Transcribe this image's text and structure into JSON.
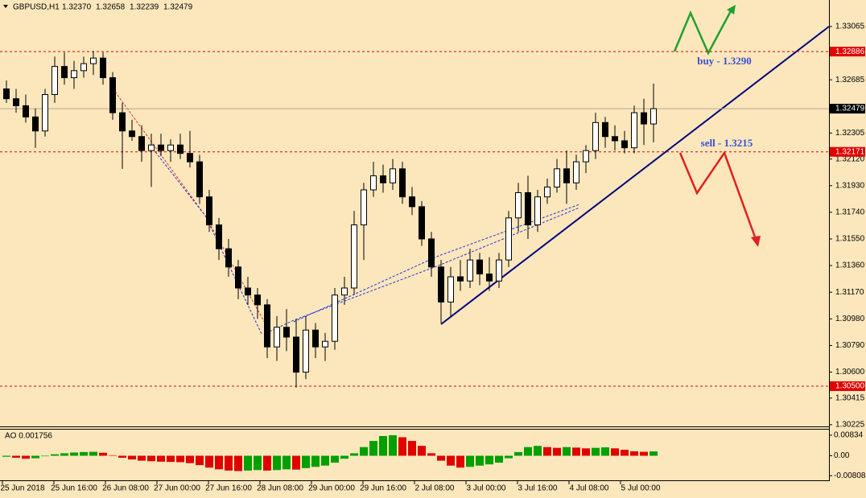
{
  "chart_data": {
    "type": "candlestick",
    "title": "GBPUSD,H1",
    "header_values": [
      "1.32370",
      "1.32658",
      "1.32239",
      "1.32479"
    ],
    "time_labels": [
      "25 Jun 2018",
      "25 Jun 16:00",
      "26 Jun 08:00",
      "27 Jun 00:00",
      "27 Jun 16:00",
      "28 Jun 08:00",
      "29 Jun 00:00",
      "29 Jun 16:00",
      "2 Jul 08:00",
      "3 Jul 00:00",
      "3 Jul 16:00",
      "4 Jul 08:00",
      "5 Jul 00:00"
    ],
    "candles": [
      [
        1.3262,
        1.3268,
        1.3252,
        1.3255
      ],
      [
        1.3255,
        1.3262,
        1.3245,
        1.325
      ],
      [
        1.325,
        1.3258,
        1.3238,
        1.3242
      ],
      [
        1.3242,
        1.3248,
        1.322,
        1.3232
      ],
      [
        1.3232,
        1.3262,
        1.3228,
        1.3258
      ],
      [
        1.3258,
        1.3285,
        1.3252,
        1.3278
      ],
      [
        1.3278,
        1.3288,
        1.3265,
        1.327
      ],
      [
        1.327,
        1.3282,
        1.3262,
        1.3275
      ],
      [
        1.3275,
        1.3285,
        1.327,
        1.328
      ],
      [
        1.328,
        1.3289,
        1.3272,
        1.3284
      ],
      [
        1.3284,
        1.3288,
        1.3265,
        1.327
      ],
      [
        1.327,
        1.3274,
        1.324,
        1.3245
      ],
      [
        1.3245,
        1.3252,
        1.3205,
        1.3232
      ],
      [
        1.3232,
        1.324,
        1.3225,
        1.3228
      ],
      [
        1.3228,
        1.3236,
        1.321,
        1.3218
      ],
      [
        1.3218,
        1.323,
        1.3192,
        1.3222
      ],
      [
        1.3222,
        1.323,
        1.3214,
        1.3218
      ],
      [
        1.3218,
        1.3226,
        1.321,
        1.3222
      ],
      [
        1.3222,
        1.323,
        1.3212,
        1.3216
      ],
      [
        1.3216,
        1.3232,
        1.3206,
        1.321
      ],
      [
        1.321,
        1.3215,
        1.318,
        1.3185
      ],
      [
        1.3185,
        1.319,
        1.316,
        1.3165
      ],
      [
        1.3165,
        1.317,
        1.314,
        1.3148
      ],
      [
        1.3148,
        1.3155,
        1.3128,
        1.3135
      ],
      [
        1.3135,
        1.314,
        1.3112,
        1.312
      ],
      [
        1.312,
        1.3128,
        1.3108,
        1.3115
      ],
      [
        1.3115,
        1.312,
        1.3098,
        1.3108
      ],
      [
        1.3108,
        1.3112,
        1.307,
        1.3078
      ],
      [
        1.3078,
        1.31,
        1.3068,
        1.3092
      ],
      [
        1.3092,
        1.3105,
        1.3075,
        1.3085
      ],
      [
        1.3085,
        1.3098,
        1.3049,
        1.306
      ],
      [
        1.306,
        1.31,
        1.3055,
        1.309
      ],
      [
        1.309,
        1.3095,
        1.307,
        1.3078
      ],
      [
        1.3078,
        1.3088,
        1.3068,
        1.3082
      ],
      [
        1.3082,
        1.312,
        1.3076,
        1.3115
      ],
      [
        1.3115,
        1.3128,
        1.3108,
        1.312
      ],
      [
        1.312,
        1.3175,
        1.3115,
        1.3165
      ],
      [
        1.3165,
        1.3195,
        1.314,
        1.319
      ],
      [
        1.319,
        1.321,
        1.3185,
        1.32
      ],
      [
        1.32,
        1.3208,
        1.3188,
        1.3195
      ],
      [
        1.3195,
        1.3212,
        1.319,
        1.3205
      ],
      [
        1.3205,
        1.321,
        1.318,
        1.3185
      ],
      [
        1.3185,
        1.3192,
        1.3172,
        1.3178
      ],
      [
        1.3178,
        1.3182,
        1.315,
        1.3155
      ],
      [
        1.3155,
        1.316,
        1.3128,
        1.3135
      ],
      [
        1.3135,
        1.314,
        1.3095,
        1.311
      ],
      [
        1.311,
        1.3135,
        1.31,
        1.3128
      ],
      [
        1.3128,
        1.314,
        1.3118,
        1.3125
      ],
      [
        1.3125,
        1.3148,
        1.312,
        1.314
      ],
      [
        1.314,
        1.3145,
        1.3122,
        1.313
      ],
      [
        1.313,
        1.3142,
        1.3118,
        1.3125
      ],
      [
        1.3125,
        1.3145,
        1.312,
        1.314
      ],
      [
        1.314,
        1.3175,
        1.3135,
        1.317
      ],
      [
        1.317,
        1.3195,
        1.316,
        1.3188
      ],
      [
        1.3188,
        1.32,
        1.3155,
        1.3165
      ],
      [
        1.3165,
        1.319,
        1.316,
        1.3185
      ],
      [
        1.3185,
        1.3198,
        1.318,
        1.3192
      ],
      [
        1.3192,
        1.3212,
        1.3188,
        1.3205
      ],
      [
        1.3205,
        1.3218,
        1.318,
        1.3195
      ],
      [
        1.3195,
        1.3215,
        1.319,
        1.321
      ],
      [
        1.321,
        1.3222,
        1.3202,
        1.3218
      ],
      [
        1.3218,
        1.3245,
        1.3212,
        1.3238
      ],
      [
        1.3238,
        1.3242,
        1.322,
        1.3228
      ],
      [
        1.3228,
        1.3236,
        1.3218,
        1.3225
      ],
      [
        1.3225,
        1.3232,
        1.3216,
        1.322
      ],
      [
        1.322,
        1.325,
        1.3216,
        1.3245
      ],
      [
        1.3245,
        1.3255,
        1.3222,
        1.3237
      ],
      [
        1.3237,
        1.32658,
        1.32239,
        1.32479
      ]
    ],
    "ylim": [
      1.30213,
      1.33254
    ],
    "yticks": [
      1.33065,
      1.32685,
      1.32305,
      {
        "value": 1.3212,
        "label": "1.32120"
      },
      {
        "value": 1.3193,
        "label": "1.31930"
      },
      {
        "value": 1.3174,
        "label": "1.31740"
      },
      {
        "value": 1.3155,
        "label": "1.31550"
      },
      {
        "value": 1.3136,
        "label": "1.31360"
      },
      {
        "value": 1.3117,
        "label": "1.31170"
      },
      {
        "value": 1.3098,
        "label": "1.30980"
      },
      {
        "value": 1.3079,
        "label": "1.30790"
      },
      {
        "value": 1.306,
        "label": "1.30600"
      },
      1.30415,
      1.30225
    ],
    "levels": [
      1.32886,
      1.32171,
      {
        "value": 1.305,
        "label": "1.30500"
      }
    ],
    "level_color": "#e00000",
    "current_price": 1.32479,
    "annotations": [
      "buy - 1.3290",
      "sell - 1.3215"
    ],
    "ao": {
      "title": "AO 0.001756",
      "values": [
        -0.0004,
        -0.0008,
        -0.0012,
        -0.001,
        -0.0002,
        0.0006,
        0.001,
        0.0013,
        0.0015,
        0.0016,
        0.0012,
        0.0002,
        -0.0008,
        -0.0015,
        -0.002,
        -0.0022,
        -0.0024,
        -0.0025,
        -0.0026,
        -0.003,
        -0.0038,
        -0.0048,
        -0.0055,
        -0.006,
        -0.0062,
        -0.006,
        -0.0058,
        -0.006,
        -0.0058,
        -0.0055,
        -0.0056,
        -0.005,
        -0.0045,
        -0.004,
        -0.0028,
        -0.0012,
        0.001,
        0.0035,
        0.006,
        0.008,
        0.0083,
        0.0075,
        0.006,
        0.004,
        0.001,
        -0.002,
        -0.004,
        -0.0048,
        -0.0045,
        -0.004,
        -0.0035,
        -0.0028,
        -0.001,
        0.0015,
        0.0035,
        0.004,
        0.0035,
        0.0032,
        0.0035,
        0.0033,
        0.003,
        0.0032,
        0.0034,
        0.003,
        0.0024,
        0.0018,
        0.0016,
        0.001756
      ],
      "up_color": "#00a000",
      "down_color": "#e00000",
      "ylim": [
        -0.00995,
        0.01059
      ],
      "yticks": [
        0.00834,
        {
          "value": 0,
          "label": "0.00"
        },
        -0.008085
      ]
    }
  }
}
